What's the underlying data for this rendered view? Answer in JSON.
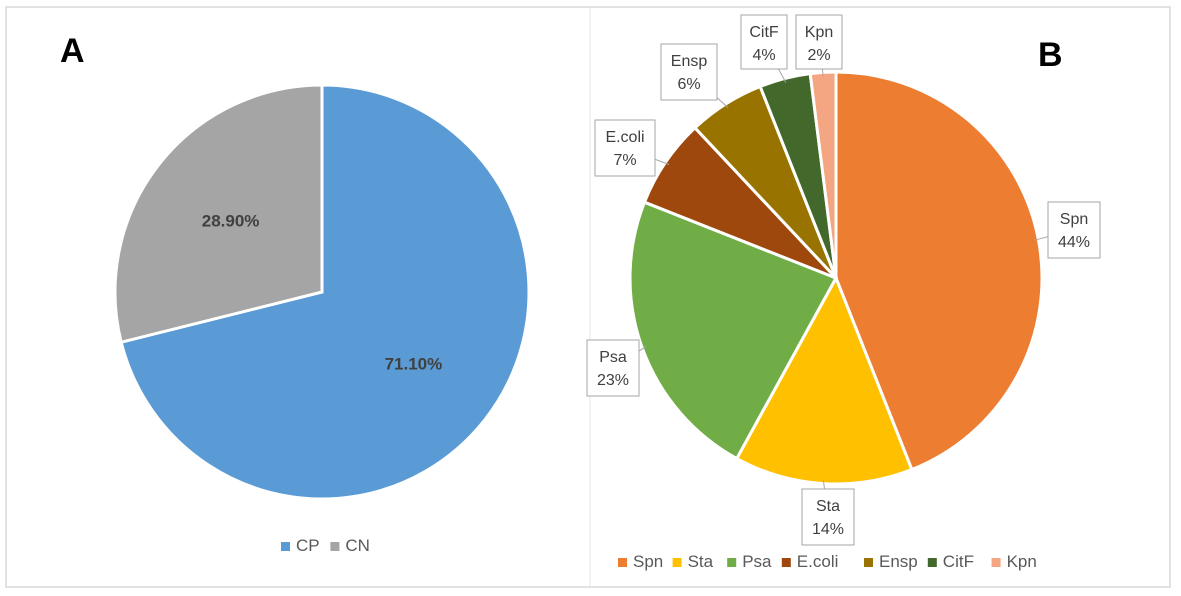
{
  "charts": [
    {
      "panel_label": "A",
      "chart_data": {
        "type": "pie",
        "categories": [
          "CP",
          "CN"
        ],
        "values": [
          71.1,
          28.9
        ],
        "data_labels": [
          "71.10%",
          "28.90%"
        ],
        "colors": [
          "#5b9bd5",
          "#a5a5a5"
        ],
        "legend": "bottom"
      }
    },
    {
      "panel_label": "B",
      "chart_data": {
        "type": "pie",
        "categories": [
          "Spn",
          "Sta",
          "Psa",
          "E.coli",
          "Ensp",
          "CitF",
          "Kpn"
        ],
        "values": [
          44,
          14,
          23,
          7,
          6,
          4,
          2
        ],
        "data_labels": [
          "44%",
          "14%",
          "23%",
          "7%",
          "6%",
          "4%",
          "2%"
        ],
        "colors": [
          "#ed7d31",
          "#ffc000",
          "#70ad47",
          "#9e480e",
          "#997300",
          "#43682b",
          "#f4a582"
        ],
        "legend": "bottom"
      }
    }
  ]
}
